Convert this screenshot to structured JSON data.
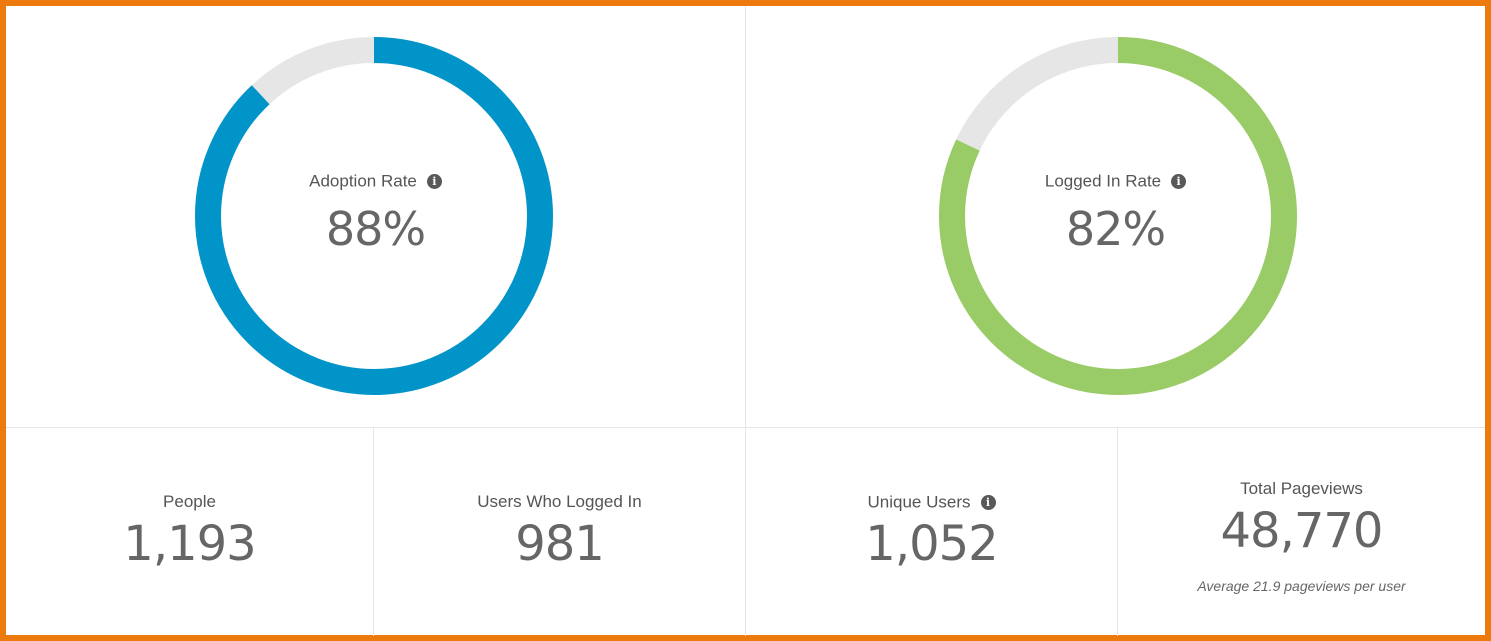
{
  "colors": {
    "frame": "#ec7a0c",
    "adoption": "#0094c9",
    "logged_in": "#99cc66",
    "track": "#e6e6e6",
    "divider": "#e6e6e6"
  },
  "gauges": [
    {
      "label": "Adoption Rate",
      "value_text": "88%",
      "fraction": 0.88,
      "color": "#0094c9",
      "icon": "info-icon"
    },
    {
      "label": "Logged In Rate",
      "value_text": "82%",
      "fraction": 0.82,
      "color": "#99cc66",
      "icon": "info-icon"
    }
  ],
  "stats": [
    {
      "label": "People",
      "value": "1,193"
    },
    {
      "label": "Users Who Logged In",
      "value": "981"
    },
    {
      "label": "Unique Users",
      "value": "1,052",
      "icon": "info-icon"
    },
    {
      "label": "Total Pageviews",
      "value": "48,770",
      "note": "Average 21.9 pageviews per user"
    }
  ]
}
